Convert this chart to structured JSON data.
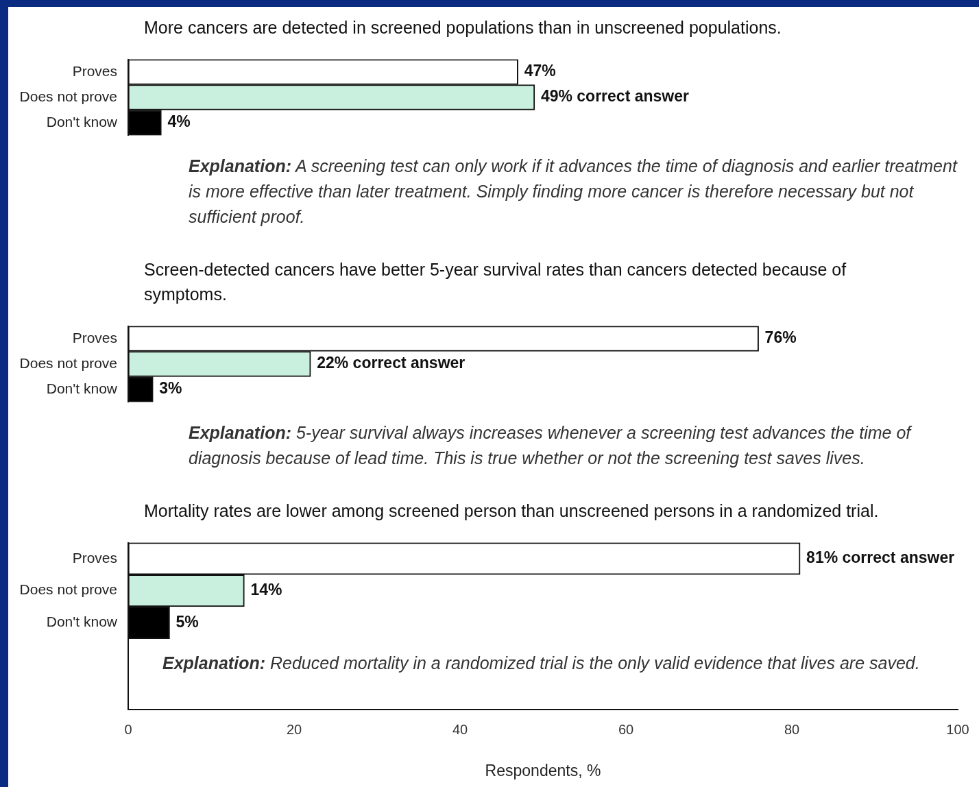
{
  "chart_data": [
    {
      "type": "bar",
      "orientation": "horizontal",
      "title": "More cancers are detected in screened populations than in unscreened populations.",
      "categories": [
        "Proves",
        "Does not prove",
        "Don't know"
      ],
      "values": [
        47,
        49,
        4
      ],
      "colors": [
        "#ffffff",
        "#c9efdf",
        "#000000"
      ],
      "value_labels": [
        "47%",
        "49% correct answer",
        "4%"
      ],
      "annotations": [
        "Explanation: A screening test can only work if it advances the time of diagnosis and earlier treatment is more effective than later treatment. Simply finding more cancer is therefore necessary but not sufficient proof."
      ],
      "xlim": [
        0,
        100
      ],
      "tick_labels": "y"
    },
    {
      "type": "bar",
      "orientation": "horizontal",
      "title": "Screen-detected cancers have better 5-year survival rates than cancers detected because of symptoms.",
      "categories": [
        "Proves",
        "Does not prove",
        "Don't know"
      ],
      "values": [
        76,
        22,
        3
      ],
      "colors": [
        "#ffffff",
        "#c9efdf",
        "#000000"
      ],
      "value_labels": [
        "76%",
        "22% correct answer",
        "3%"
      ],
      "annotations": [
        "Explanation: 5-year survival always increases whenever a screening test advances the time of diagnosis because of lead time. This is true whether or not the screening test saves lives."
      ],
      "xlim": [
        0,
        100
      ],
      "tick_labels": "y"
    },
    {
      "type": "bar",
      "orientation": "horizontal",
      "title": "Mortality rates are lower among screened person than unscreened persons in a randomized trial.",
      "xlabel": "Respondents, %",
      "categories": [
        "Proves",
        "Does not prove",
        "Don't know"
      ],
      "values": [
        81,
        14,
        5
      ],
      "colors": [
        "#ffffff",
        "#c9efdf",
        "#000000"
      ],
      "value_labels": [
        "81% correct answer",
        "14%",
        "5%"
      ],
      "annotations": [
        "Explanation: Reduced mortality in a randomized trial is the only valid evidence that lives are saved."
      ],
      "xlim": [
        0,
        100
      ],
      "xticks": [
        0,
        20,
        40,
        60,
        80,
        100
      ]
    }
  ]
}
